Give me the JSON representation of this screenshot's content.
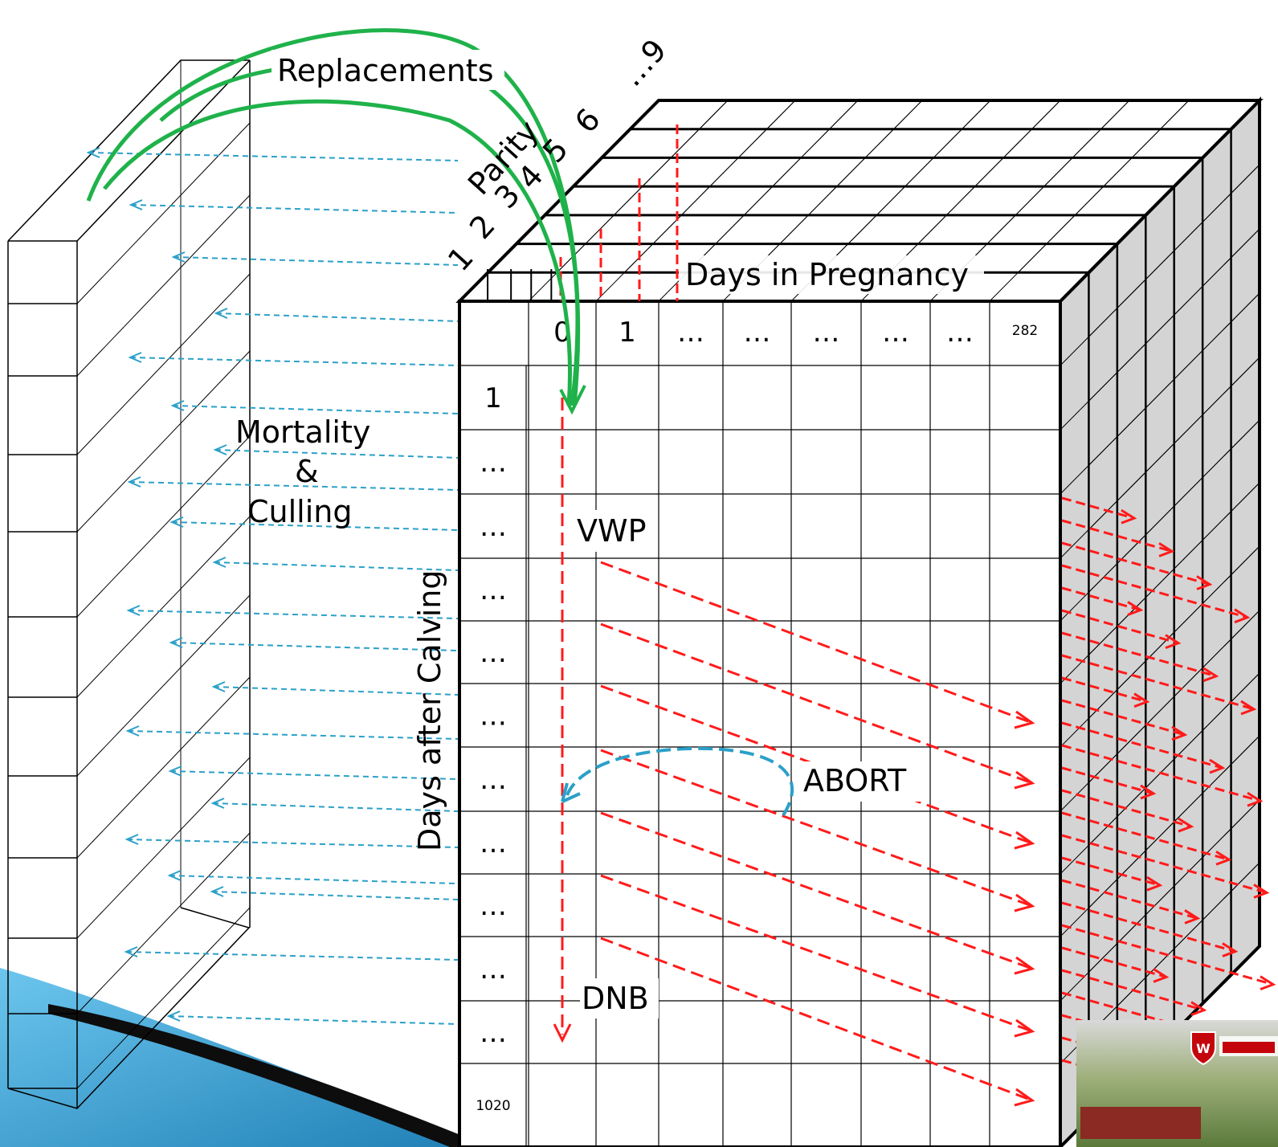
{
  "labels": {
    "replacements": "Replacements",
    "mortality": "Mortality",
    "ampersand": "&",
    "culling": "Culling",
    "days_in_pregnancy": "Days in Pregnancy",
    "days_after_calving": "Days after Calving",
    "parity": "Parity",
    "vwp": "VWP",
    "abort": "ABORT",
    "dnb": "DNB"
  },
  "parity_ticks": [
    "1",
    "2",
    "3",
    "4",
    "5",
    "6",
    "…9"
  ],
  "pregnancy_columns": [
    "0",
    "1",
    "…",
    "…",
    "…",
    "…",
    "…",
    "282"
  ],
  "calving_rows": [
    "1",
    "…",
    "…",
    "…",
    "…",
    "…",
    "…",
    "…",
    "…",
    "…",
    "…",
    "1020"
  ],
  "colors": {
    "transition_arrow": "#ff1a1a",
    "exit_arrow": "#2ba0c8",
    "replacement_arrow": "#1fb24a",
    "cube_side": "#d4d4d4",
    "corner_swoosh": "#4aaedc"
  }
}
